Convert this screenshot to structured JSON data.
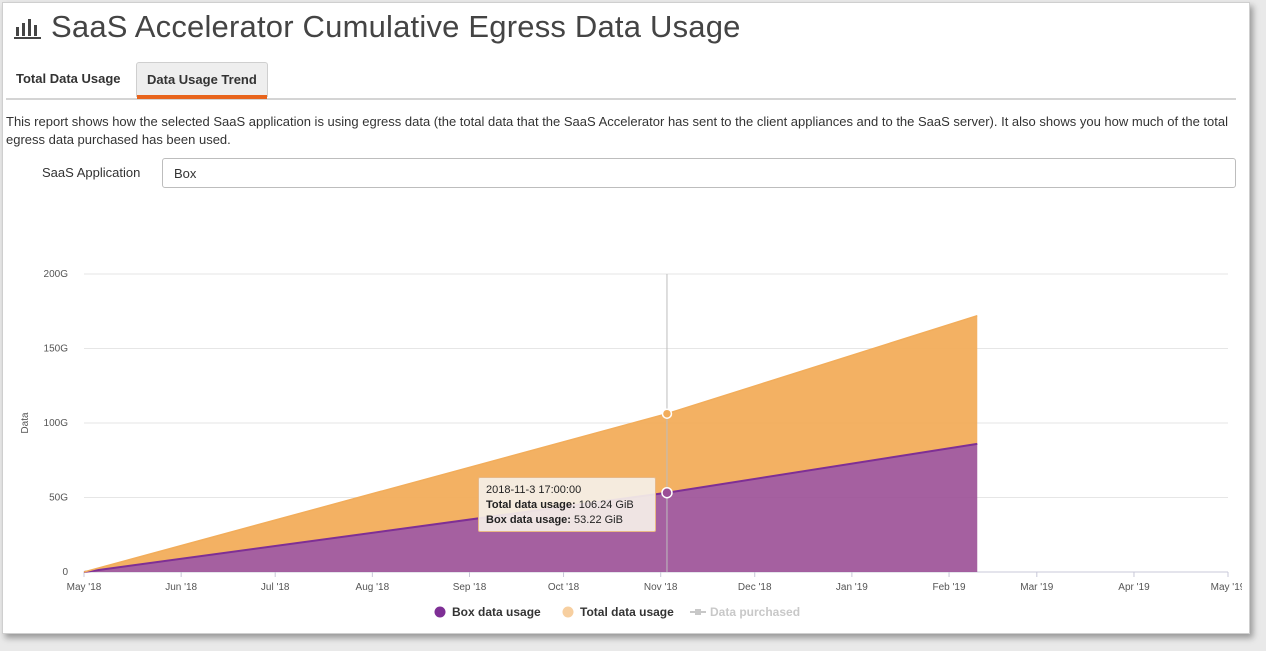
{
  "page": {
    "title": "SaaS Accelerator Cumulative Egress Data Usage",
    "icon": "bar-chart-icon"
  },
  "tabs": [
    {
      "label": "Total Data Usage",
      "active": false
    },
    {
      "label": "Data Usage Trend",
      "active": true
    }
  ],
  "description": "This report shows how the selected SaaS application is using egress data (the total data that the SaaS Accelerator has sent to the client appliances and to the SaaS server). It also shows you how much of the total egress data purchased has been used.",
  "filter": {
    "label": "SaaS Application",
    "value": "Box"
  },
  "tooltip": {
    "date": "2018-11-3 17:00:00",
    "total_label": "Total data usage:",
    "total_value": "106.24 GiB",
    "box_label": "Box data usage:",
    "box_value": "53.22 GiB"
  },
  "colors": {
    "box": "#9b4f96",
    "box_line": "#7e2f95",
    "total": "#f2ad5b",
    "purchased": "#c8c8c8",
    "accent": "#e8641c"
  },
  "chart_data": {
    "type": "area",
    "stacked": true,
    "ylabel": "Data",
    "xlabel": "",
    "x_ticks": [
      "May '18",
      "Jun '18",
      "Jul '18",
      "Aug '18",
      "Sep '18",
      "Oct '18",
      "Nov '18",
      "Dec '18",
      "Jan '19",
      "Feb '19",
      "Mar '19",
      "Apr '19",
      "May '19"
    ],
    "xlim": [
      "2018-05-01",
      "2019-05-01"
    ],
    "y_ticks": [
      "0",
      "50G",
      "100G",
      "150G",
      "200G"
    ],
    "ylim": [
      0,
      200
    ],
    "y_unit": "GiB",
    "grid": "horizontal",
    "legend_position": "bottom-center",
    "series": [
      {
        "name": "Box data usage",
        "points": [
          [
            "2018-05-01",
            0
          ],
          [
            "2018-11-03",
            53.22
          ],
          [
            "2019-02-10",
            86
          ]
        ]
      },
      {
        "name": "Total data usage",
        "points": [
          [
            "2018-05-01",
            0
          ],
          [
            "2018-11-03",
            106.24
          ],
          [
            "2019-02-10",
            172
          ]
        ]
      },
      {
        "name": "Data purchased",
        "points": [],
        "visible": false
      }
    ],
    "crosshair_x": "2018-11-03"
  }
}
